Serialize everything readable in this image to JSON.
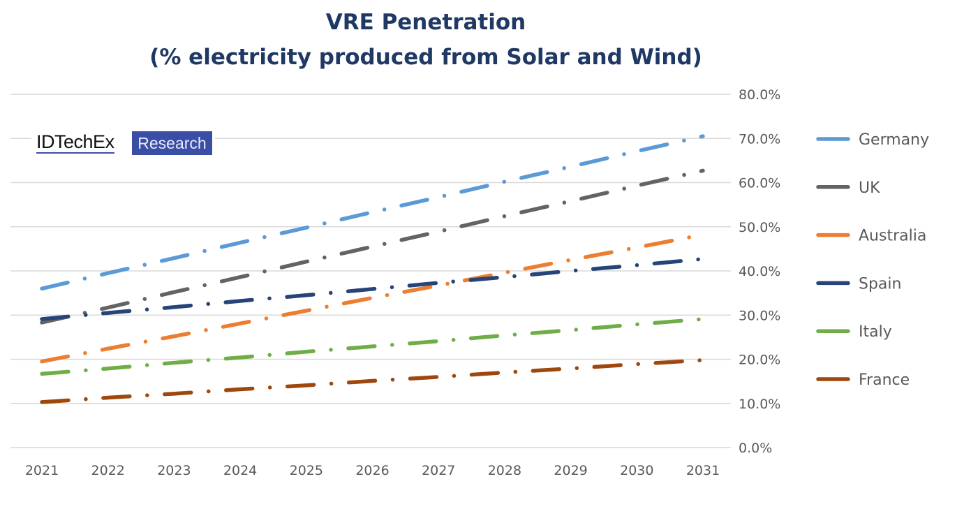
{
  "chart_data": {
    "type": "line",
    "title": "VRE Penetration",
    "subtitle": "(% electricity produced from Solar and Wind)",
    "xlabel": "",
    "ylabel": "",
    "x": [
      "2021",
      "2022",
      "2023",
      "2024",
      "2025",
      "2026",
      "2027",
      "2028",
      "2029",
      "2030",
      "2031"
    ],
    "ylim": [
      0,
      80
    ],
    "yticks": [
      "0.0%",
      "10.0%",
      "20.0%",
      "30.0%",
      "40.0%",
      "50.0%",
      "60.0%",
      "70.0%",
      "80.0%"
    ],
    "grid": true,
    "legend_position": "right",
    "line_style": "dash-dot",
    "series": [
      {
        "name": "Germany",
        "color": "#5b9bd5",
        "values": [
          36.0,
          39.5,
          42.9,
          46.4,
          49.8,
          53.3,
          56.7,
          60.2,
          63.6,
          67.1,
          70.5
        ]
      },
      {
        "name": "UK",
        "color": "#636363",
        "values": [
          28.3,
          31.7,
          35.2,
          38.6,
          42.1,
          45.5,
          48.9,
          52.4,
          55.8,
          59.3,
          62.7
        ]
      },
      {
        "name": "Australia",
        "color": "#ed7d31",
        "values": [
          19.5,
          22.4,
          25.2,
          28.1,
          31.0,
          33.9,
          36.7,
          39.6,
          42.5,
          45.3,
          48.2
        ]
      },
      {
        "name": "Spain",
        "color": "#264478",
        "values": [
          29.1,
          30.5,
          31.8,
          33.2,
          34.5,
          35.9,
          37.3,
          38.6,
          40.0,
          41.3,
          42.7
        ]
      },
      {
        "name": "Italy",
        "color": "#70ad47",
        "values": [
          16.7,
          17.9,
          19.2,
          20.4,
          21.7,
          22.9,
          24.1,
          25.4,
          26.6,
          27.9,
          29.1
        ]
      },
      {
        "name": "France",
        "color": "#9e480e",
        "values": [
          10.3,
          11.3,
          12.2,
          13.2,
          14.1,
          15.1,
          16.0,
          17.0,
          17.9,
          18.9,
          19.8
        ]
      }
    ]
  },
  "logo": {
    "brand": "IDTechEx",
    "tag": "Research",
    "tag_color": "#3b4ea6"
  }
}
